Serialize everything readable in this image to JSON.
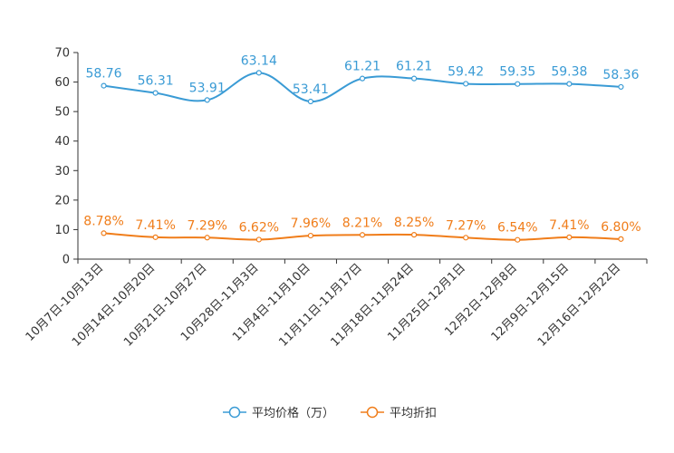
{
  "chart_data": {
    "type": "line",
    "categories": [
      "10月7日-10月13日",
      "10月14日-10月20日",
      "10月21日-10月27日",
      "10月28日-11月3日",
      "11月4日-11月10日",
      "11月11日-11月17日",
      "11月18日-11月24日",
      "11月25日-12月1日",
      "12月2日-12月8日",
      "12月9日-12月15日",
      "12月16日-12月22日"
    ],
    "ylim": [
      0,
      70
    ],
    "yticks": [
      0,
      10,
      20,
      30,
      40,
      50,
      60,
      70
    ],
    "legend_position": "bottom-center",
    "series": [
      {
        "name": "平均价格（万）",
        "color": "#3a9bd5",
        "values": [
          58.76,
          56.31,
          53.91,
          63.14,
          53.41,
          61.21,
          61.21,
          59.42,
          59.35,
          59.38,
          58.36
        ],
        "labels": [
          "58.76",
          "56.31",
          "53.91",
          "63.14",
          "53.41",
          "61.21",
          "61.21",
          "59.42",
          "59.35",
          "59.38",
          "58.36"
        ]
      },
      {
        "name": "平均折扣",
        "color": "#f07d1a",
        "values": [
          8.78,
          7.41,
          7.29,
          6.62,
          7.96,
          8.21,
          8.25,
          7.27,
          6.54,
          7.41,
          6.8
        ],
        "labels": [
          "8.78%",
          "7.41%",
          "7.29%",
          "6.62%",
          "7.96%",
          "8.21%",
          "8.25%",
          "7.27%",
          "6.54%",
          "7.41%",
          "6.80%"
        ]
      }
    ]
  }
}
